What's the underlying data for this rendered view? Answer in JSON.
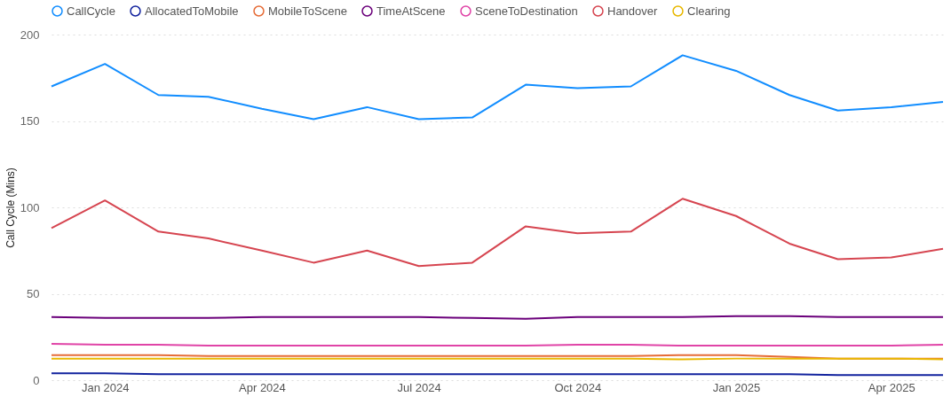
{
  "chart_data": {
    "type": "line",
    "ylabel": "Call Cycle (Mins)",
    "x": [
      "2023-12",
      "2024-01",
      "2024-02",
      "2024-03",
      "2024-04",
      "2024-05",
      "2024-06",
      "2024-07",
      "2024-08",
      "2024-09",
      "2024-10",
      "2024-11",
      "2024-12",
      "2025-01",
      "2025-02",
      "2025-03",
      "2025-04",
      "2025-05"
    ],
    "xlim": [
      "2023-12",
      "2025-05"
    ],
    "xticks": [
      {
        "value": "2024-01",
        "label": "Jan 2024"
      },
      {
        "value": "2024-04",
        "label": "Apr 2024"
      },
      {
        "value": "2024-07",
        "label": "Jul 2024"
      },
      {
        "value": "2024-10",
        "label": "Oct 2024"
      },
      {
        "value": "2025-01",
        "label": "Jan 2025"
      },
      {
        "value": "2025-04",
        "label": "Apr 2025"
      }
    ],
    "ylim": [
      0,
      200
    ],
    "yticks": [
      0,
      50,
      100,
      150,
      200
    ],
    "grid": "y",
    "legend": "top",
    "marker": "none",
    "line_style": "solid",
    "series": [
      {
        "name": "CallCycle",
        "color": "#118dff",
        "values": [
          170,
          183,
          165,
          164,
          157,
          151,
          158,
          151,
          152,
          171,
          169,
          170,
          188,
          179,
          165,
          156,
          158,
          161
        ]
      },
      {
        "name": "AllocatedToMobile",
        "color": "#12239e",
        "values": [
          4,
          4,
          3.5,
          3.5,
          3.5,
          3.5,
          3.5,
          3.5,
          3.5,
          3.5,
          3.5,
          3.5,
          3.5,
          3.5,
          3.5,
          3,
          3,
          3
        ]
      },
      {
        "name": "MobileToScene",
        "color": "#e66c37",
        "values": [
          14.5,
          14.5,
          14.5,
          14,
          14,
          14,
          14,
          14,
          14,
          14,
          14,
          14,
          14.5,
          14.5,
          13.5,
          12.5,
          12.5,
          12.5
        ]
      },
      {
        "name": "TimeAtScene",
        "color": "#6b007b",
        "values": [
          36.5,
          36,
          36,
          36,
          36.5,
          36.5,
          36.5,
          36.5,
          36,
          35.5,
          36.5,
          36.5,
          36.5,
          37,
          37,
          36.5,
          36.5,
          36.5
        ]
      },
      {
        "name": "SceneToDestination",
        "color": "#e044a7",
        "values": [
          21,
          20.5,
          20.5,
          20,
          20,
          20,
          20,
          20,
          20,
          20,
          20.5,
          20.5,
          20,
          20,
          20,
          20,
          20,
          20.5
        ]
      },
      {
        "name": "Handover",
        "color": "#d64550",
        "values": [
          88,
          104,
          86,
          82,
          75,
          68,
          75,
          66,
          68,
          89,
          85,
          86,
          105,
          95,
          79,
          70,
          71,
          76
        ]
      },
      {
        "name": "Clearing",
        "color": "#e8b800",
        "values": [
          12.5,
          12.5,
          12.5,
          12.5,
          12.5,
          12.5,
          12.5,
          12.5,
          12.5,
          12.5,
          12.5,
          12.5,
          12,
          12.5,
          12.5,
          12.5,
          12.5,
          12
        ]
      }
    ]
  }
}
